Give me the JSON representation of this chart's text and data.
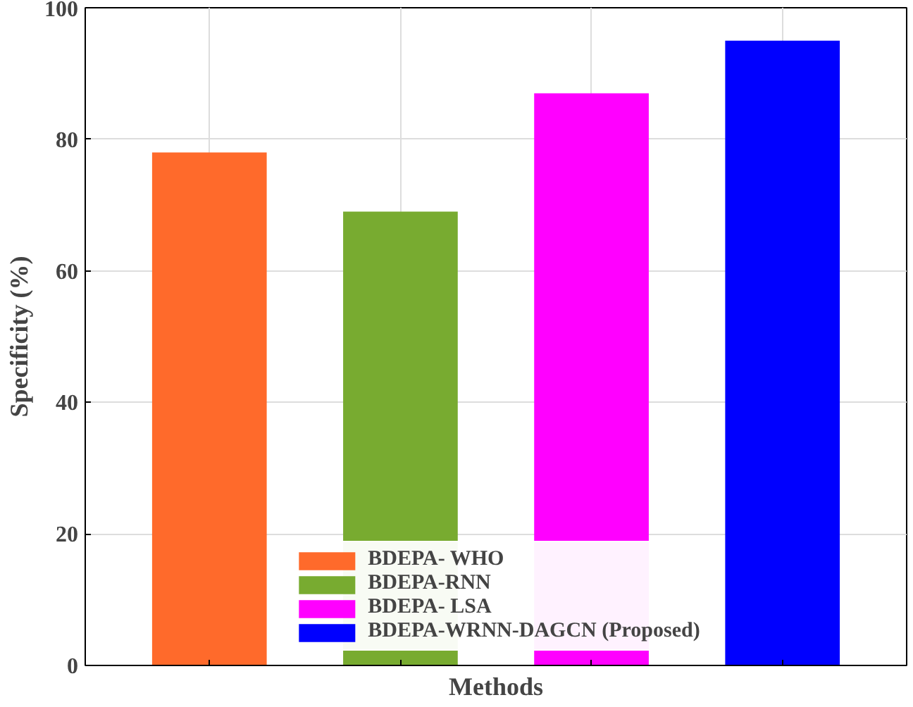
{
  "chart_data": {
    "type": "bar",
    "xlabel": "Methods",
    "ylabel": "Specificity (%)",
    "categories": [
      null,
      null,
      null,
      null
    ],
    "series": [
      {
        "name": "BDEPA- WHO",
        "color": "#ff6a2b",
        "values": [
          78,
          null,
          null,
          null
        ]
      },
      {
        "name": "BDEPA-RNN",
        "color": "#78ab30",
        "values": [
          null,
          69,
          null,
          null
        ]
      },
      {
        "name": "BDEPA- LSA",
        "color": "#ff00ff",
        "values": [
          null,
          null,
          87,
          null
        ]
      },
      {
        "name": "BDEPA-WRNN-DAGCN (Proposed)",
        "color": "#0000ff",
        "values": [
          null,
          null,
          null,
          95
        ]
      }
    ],
    "ylim": [
      0,
      100
    ],
    "yticks": [
      0,
      20,
      40,
      60,
      80,
      100
    ],
    "grid": true,
    "legend": "bottom",
    "tick_labels": "y"
  }
}
